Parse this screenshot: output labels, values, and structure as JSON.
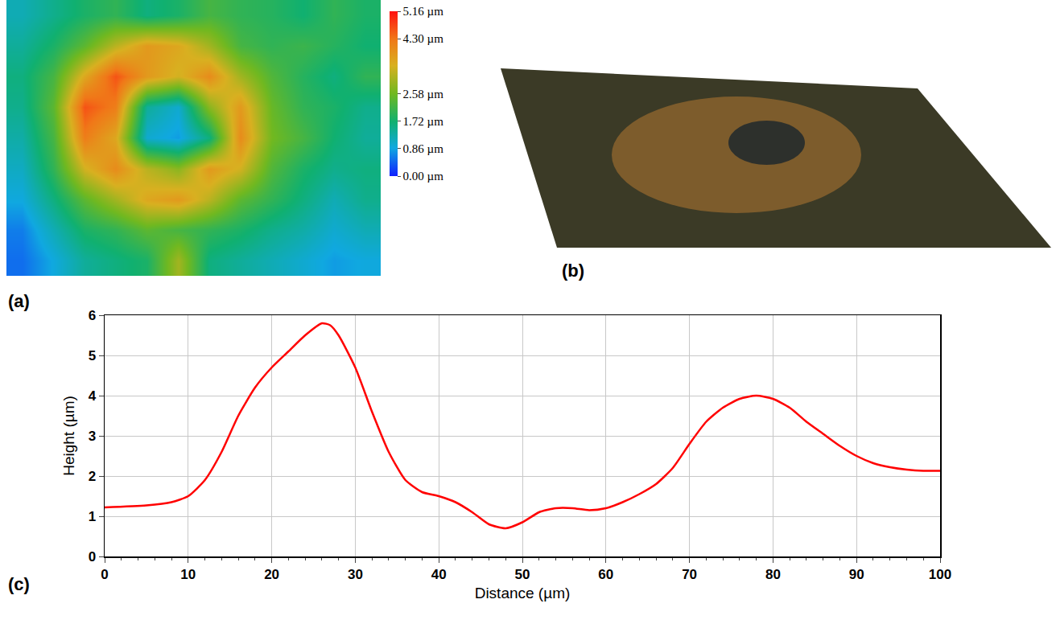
{
  "chart_data": [
    {
      "type": "heatmap",
      "annotations": [
        "(a)"
      ],
      "tick_labels": false,
      "z": [
        [
          1.2,
          1.5,
          1.8,
          2.0,
          1.6,
          1.8,
          2.2,
          2.0,
          1.9,
          1.7,
          2.0,
          1.8
        ],
        [
          1.4,
          1.8,
          2.4,
          3.2,
          3.8,
          3.6,
          3.0,
          2.2,
          2.0,
          2.1,
          1.9,
          1.7
        ],
        [
          1.6,
          2.2,
          3.6,
          4.6,
          3.8,
          3.4,
          4.0,
          3.0,
          2.3,
          1.9,
          1.6,
          2.0
        ],
        [
          1.5,
          2.4,
          4.6,
          4.2,
          1.4,
          1.0,
          2.8,
          3.8,
          2.5,
          2.0,
          1.8,
          1.5
        ],
        [
          1.3,
          2.2,
          4.2,
          3.6,
          1.0,
          0.8,
          1.6,
          4.0,
          2.6,
          2.2,
          1.7,
          1.4
        ],
        [
          1.1,
          2.0,
          3.4,
          4.0,
          3.2,
          2.8,
          3.8,
          3.4,
          2.3,
          1.8,
          1.5,
          1.6
        ],
        [
          0.9,
          1.6,
          2.4,
          3.0,
          3.6,
          3.8,
          3.2,
          2.4,
          2.0,
          1.6,
          1.2,
          1.5
        ],
        [
          0.6,
          1.2,
          1.8,
          2.0,
          2.4,
          2.2,
          2.0,
          1.8,
          1.5,
          1.3,
          1.0,
          1.2
        ],
        [
          0.5,
          0.9,
          1.4,
          1.6,
          1.8,
          3.0,
          1.6,
          1.4,
          1.2,
          1.0,
          0.8,
          0.9
        ]
      ],
      "zlim": [
        0,
        5.16
      ],
      "zticks": [
        {
          "value": 0,
          "label": "0.00 µm"
        },
        {
          "value": 0.86,
          "label": "0.86 µm"
        },
        {
          "value": 1.72,
          "label": "1.72 µm"
        },
        {
          "value": 2.58,
          "label": "2.58 µm"
        },
        {
          "value": 4.3,
          "label": "4.30 µm"
        },
        {
          "value": 5.16,
          "label": "5.16 µm"
        }
      ]
    },
    {
      "type": "image",
      "annotations": [
        "(b)"
      ]
    },
    {
      "type": "line",
      "annotations": [
        "(c)"
      ],
      "x_label": "Distance (µm)",
      "y_label": "Height (µm)",
      "x": [
        0,
        5,
        8,
        10,
        12,
        14,
        16,
        18,
        20,
        22,
        24,
        26,
        27,
        28,
        30,
        32,
        34,
        36,
        38,
        40,
        42,
        44,
        46,
        48,
        50,
        52,
        54,
        56,
        58,
        60,
        62,
        64,
        66,
        68,
        70,
        72,
        74,
        76,
        78,
        80,
        82,
        84,
        86,
        88,
        90,
        92,
        94,
        96,
        98,
        100
      ],
      "values": [
        1.22,
        1.27,
        1.35,
        1.5,
        1.9,
        2.6,
        3.5,
        4.2,
        4.7,
        5.1,
        5.5,
        5.8,
        5.75,
        5.5,
        4.7,
        3.6,
        2.6,
        1.9,
        1.6,
        1.5,
        1.35,
        1.1,
        0.8,
        0.7,
        0.85,
        1.1,
        1.2,
        1.2,
        1.15,
        1.2,
        1.35,
        1.55,
        1.8,
        2.2,
        2.8,
        3.35,
        3.7,
        3.92,
        4.0,
        3.92,
        3.7,
        3.35,
        3.05,
        2.75,
        2.5,
        2.32,
        2.22,
        2.16,
        2.13,
        2.13
      ],
      "color": "#ff0000",
      "xlim": [
        0,
        100
      ],
      "xticks": [
        0,
        10,
        20,
        30,
        40,
        50,
        60,
        70,
        80,
        90,
        100
      ],
      "ylim": [
        0,
        6
      ],
      "yticks": [
        0,
        1,
        2,
        3,
        4,
        5,
        6
      ],
      "grid": true
    }
  ]
}
